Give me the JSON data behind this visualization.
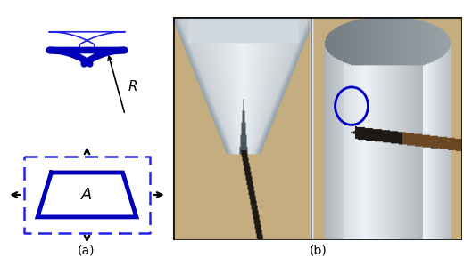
{
  "fig_width": 5.2,
  "fig_height": 2.9,
  "dpi": 100,
  "bg_color": "#ffffff",
  "blue_dark": "#0000bb",
  "blue_line": "#2222ee",
  "label_a": "(a)",
  "label_b": "(b)",
  "label_R": "R",
  "label_A": "A",
  "wood_color": "#c8ab7a",
  "paper_light": "#d8e8f0",
  "paper_mid": "#c0d4e0",
  "paper_dark": "#a0bfd0",
  "paper_shadow": "#889fad"
}
